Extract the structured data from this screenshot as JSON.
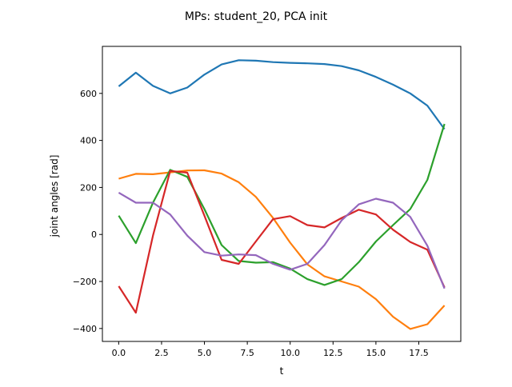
{
  "chart_data": {
    "type": "line",
    "title": "MPs: student_20, PCA init",
    "xlabel": "t",
    "ylabel": "joint angles [rad]",
    "xlim": [
      -0.95,
      19.95
    ],
    "ylim": [
      -455,
      800
    ],
    "x_ticks": [
      0.0,
      2.5,
      5.0,
      7.5,
      10.0,
      12.5,
      15.0,
      17.5
    ],
    "x_tick_labels": [
      "0.0",
      "2.5",
      "5.0",
      "7.5",
      "10.0",
      "12.5",
      "15.0",
      "17.5"
    ],
    "y_ticks": [
      -400,
      -200,
      0,
      200,
      400,
      600
    ],
    "y_tick_labels": [
      "−400",
      "−200",
      "0",
      "200",
      "400",
      "600"
    ],
    "grid": false,
    "x": [
      0,
      1,
      2,
      3,
      4,
      5,
      6,
      7,
      8,
      9,
      10,
      11,
      12,
      13,
      14,
      15,
      16,
      17,
      18,
      19
    ],
    "series": [
      {
        "color": "#1f77b4",
        "values": [
          630,
          688,
          632,
          600,
          625,
          680,
          723,
          741,
          739,
          733,
          730,
          728,
          725,
          716,
          698,
          670,
          637,
          600,
          548,
          448
        ]
      },
      {
        "color": "#ff7f0e",
        "values": [
          237,
          258,
          256,
          264,
          272,
          273,
          259,
          222,
          160,
          70,
          -35,
          -127,
          -178,
          -200,
          -222,
          -275,
          -350,
          -402,
          -382,
          -302
        ]
      },
      {
        "color": "#2ca02c",
        "values": [
          80,
          -37,
          135,
          275,
          245,
          108,
          -45,
          -113,
          -120,
          -118,
          -145,
          -190,
          -215,
          -190,
          -118,
          -30,
          40,
          108,
          232,
          470
        ]
      },
      {
        "color": "#d62728",
        "values": [
          -220,
          -333,
          -5,
          270,
          263,
          80,
          -108,
          -125,
          -30,
          65,
          78,
          40,
          30,
          70,
          105,
          85,
          20,
          -32,
          -65,
          -225
        ]
      },
      {
        "color": "#9467bd",
        "values": [
          178,
          135,
          135,
          85,
          -5,
          -75,
          -90,
          -85,
          -88,
          -125,
          -150,
          -125,
          -45,
          60,
          128,
          152,
          135,
          75,
          -48,
          -230
        ]
      }
    ]
  }
}
